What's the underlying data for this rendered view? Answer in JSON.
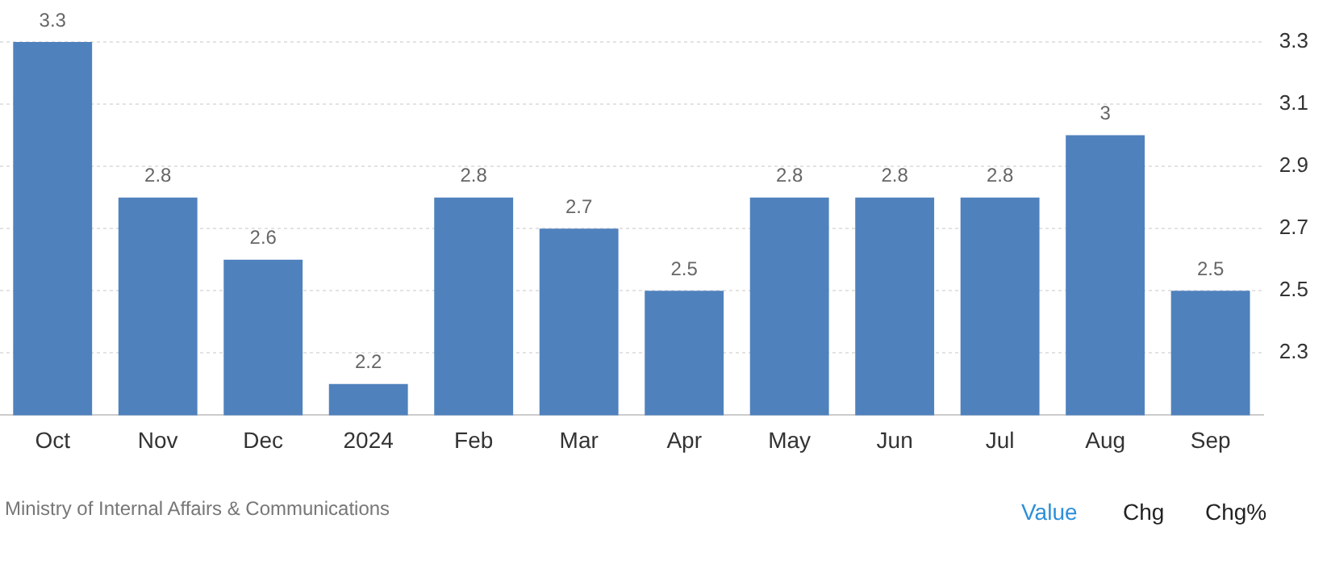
{
  "chart_data": {
    "type": "bar",
    "categories": [
      "Oct",
      "Nov",
      "Dec",
      "2024",
      "Feb",
      "Mar",
      "Apr",
      "May",
      "Jun",
      "Jul",
      "Aug",
      "Sep"
    ],
    "values": [
      3.3,
      2.8,
      2.6,
      2.2,
      2.8,
      2.7,
      2.5,
      2.8,
      2.8,
      2.8,
      3.0,
      2.5
    ],
    "value_labels": [
      "3.3",
      "2.8",
      "2.6",
      "2.2",
      "2.8",
      "2.7",
      "2.5",
      "2.8",
      "2.8",
      "2.8",
      "3",
      "2.5"
    ],
    "color": "#4f81bd",
    "ylim": [
      2.1,
      3.3
    ],
    "yticks": [
      2.3,
      2.5,
      2.7,
      2.9,
      3.1,
      3.3
    ],
    "grid": "y",
    "legend": false,
    "annotations": [
      "Ministry of Internal Affairs & Communications",
      "Value",
      "Chg",
      "Chg%"
    ]
  }
}
